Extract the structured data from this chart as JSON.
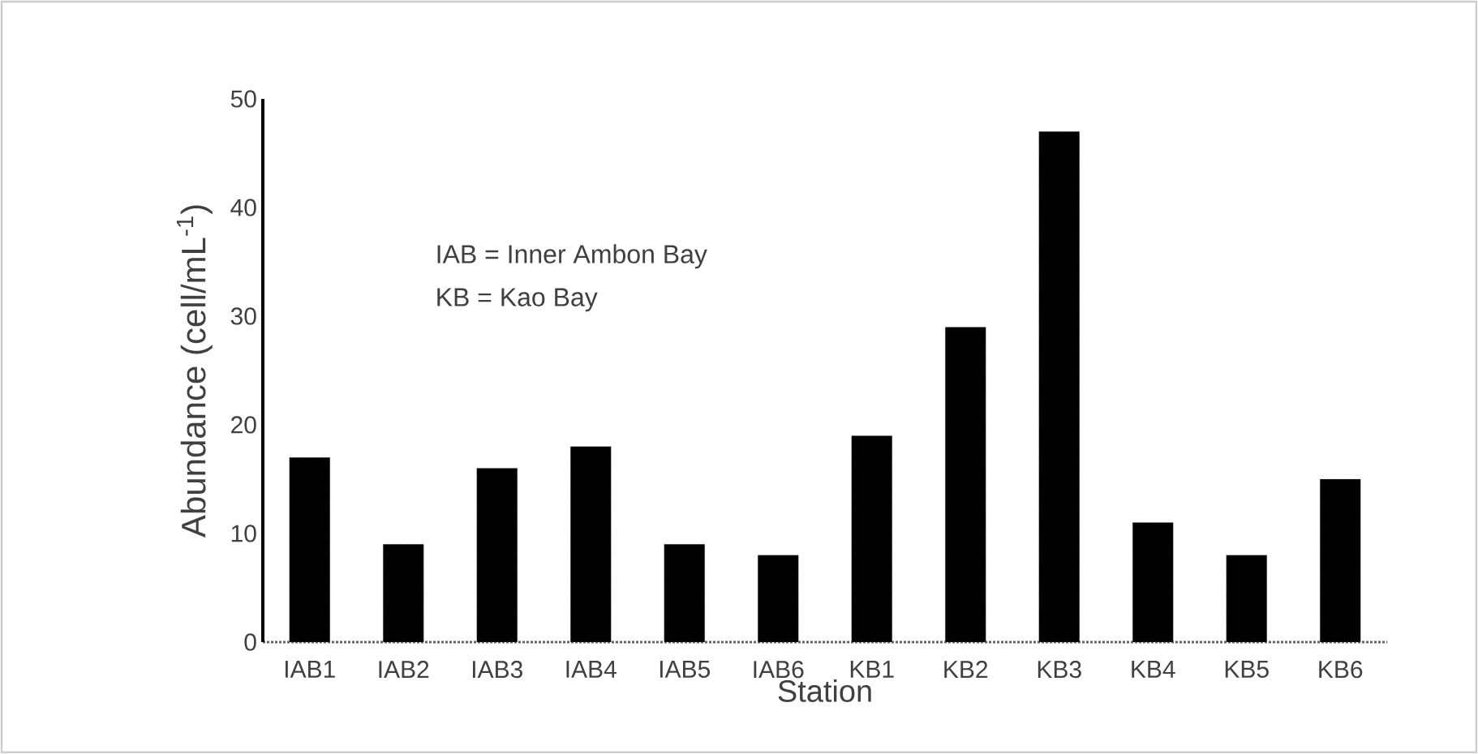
{
  "chart_data": {
    "type": "bar",
    "xlabel": "Station",
    "ylabel": "Abundance (cell/mL$^{-1}$)",
    "categories": [
      "IAB1",
      "IAB2",
      "IAB3",
      "IAB4",
      "IAB5",
      "IAB6",
      "KB1",
      "KB2",
      "KB3",
      "KB4",
      "KB5",
      "KB6"
    ],
    "values": [
      17,
      9,
      16,
      18,
      9,
      8,
      19,
      29,
      47,
      11,
      8,
      15
    ],
    "color": "#000000",
    "ylim": [
      0,
      50
    ],
    "yticks": [
      0,
      10,
      20,
      30,
      40,
      50
    ],
    "annotations": [
      "IAB = Inner Ambon Bay",
      "KB  = Kao Bay"
    ]
  }
}
